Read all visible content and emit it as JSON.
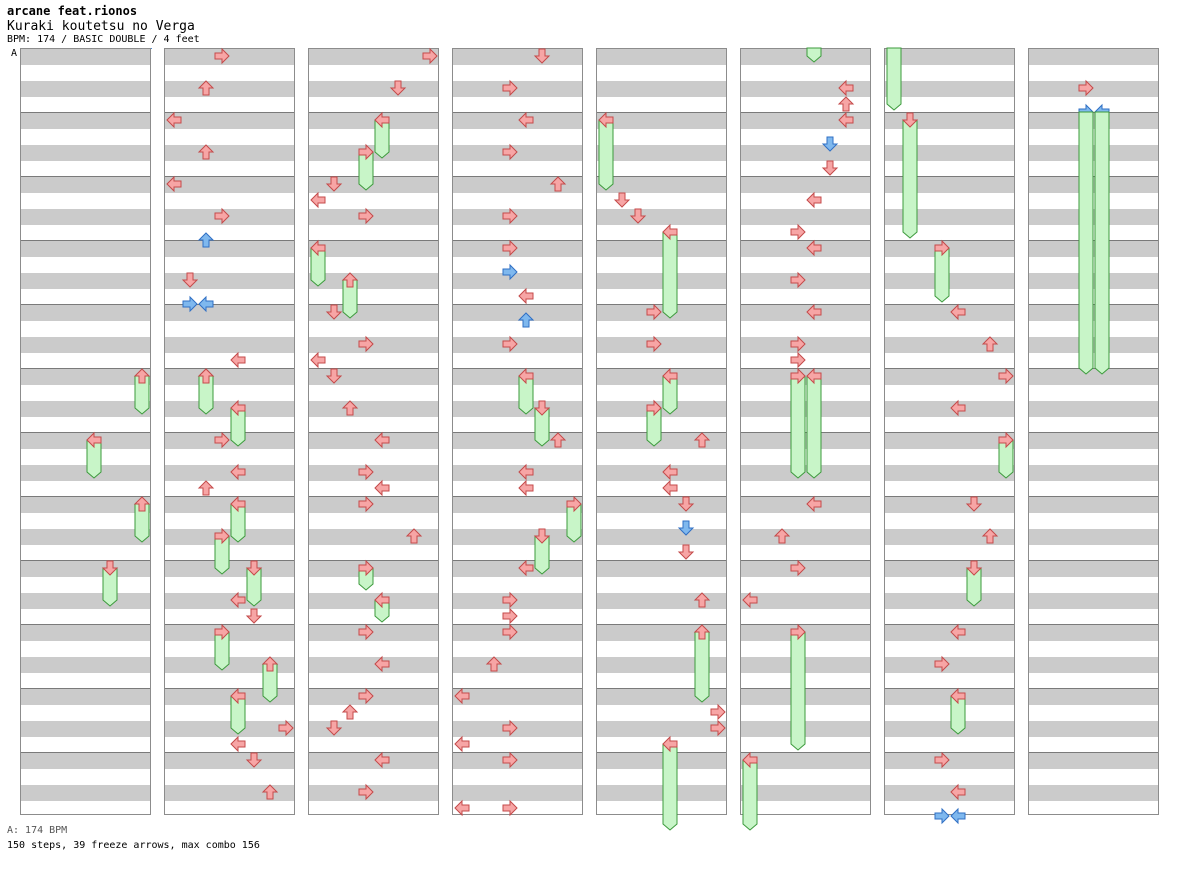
{
  "song": {
    "artist": "arcane feat.rionos",
    "title": "Kuraki koutetsu no Verga",
    "meta": "BPM: 174 / BASIC DOUBLE / 4 feet",
    "bpm_marker": "A"
  },
  "footer": {
    "bpm_legend": "A: 174 BPM",
    "stats": "150 steps, 39 freeze arrows, max combo 156"
  },
  "colors": {
    "tap_fill": "#f7a5a5",
    "tap_stroke": "#c44a4a",
    "blue_fill": "#7fb8ee",
    "blue_stroke": "#2f6fc4",
    "freeze_fill": "#c8f5c8",
    "freeze_stroke": "#3c9a3c",
    "band": "#cbcbcb"
  },
  "chart": {
    "columns": 8,
    "measures_per_column": 12,
    "lanes_per_measure": 8
  }
}
